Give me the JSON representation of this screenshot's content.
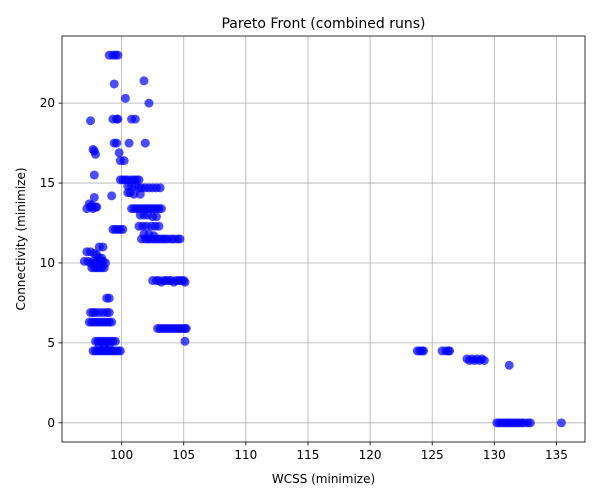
{
  "chart_data": {
    "type": "scatter",
    "title": "Pareto Front (combined runs)",
    "xlabel": "WCSS (minimize)",
    "ylabel": "Connectivity (minimize)",
    "xlim": [
      95.2,
      137.3
    ],
    "ylim": [
      -1.2,
      24.2
    ],
    "x_ticks": [
      100,
      105,
      110,
      115,
      120,
      125,
      130,
      135
    ],
    "y_ticks": [
      0,
      5,
      10,
      15,
      20
    ],
    "grid": true,
    "marker_color": "#0000ff",
    "marker_opacity": 0.7,
    "series": [
      {
        "points": [
          [
            97.2,
            13.4
          ],
          [
            97.4,
            13.7
          ],
          [
            97.5,
            13.5
          ],
          [
            97.6,
            13.6
          ],
          [
            97.7,
            13.4
          ],
          [
            97.9,
            13.5
          ],
          [
            98.0,
            13.5
          ],
          [
            97.8,
            14.1
          ],
          [
            97.5,
            18.9
          ],
          [
            97.7,
            17.1
          ],
          [
            97.8,
            17.0
          ],
          [
            97.9,
            16.8
          ],
          [
            97.8,
            15.5
          ],
          [
            99.0,
            23.0
          ],
          [
            99.3,
            23.0
          ],
          [
            99.5,
            23.0
          ],
          [
            99.7,
            23.0
          ],
          [
            99.4,
            21.2
          ],
          [
            99.3,
            19.0
          ],
          [
            99.6,
            19.0
          ],
          [
            99.7,
            19.0
          ],
          [
            99.4,
            17.5
          ],
          [
            99.6,
            17.5
          ],
          [
            99.8,
            16.9
          ],
          [
            99.9,
            16.4
          ],
          [
            100.2,
            16.4
          ],
          [
            100.3,
            20.3
          ],
          [
            100.6,
            17.5
          ],
          [
            99.2,
            14.2
          ],
          [
            99.9,
            15.2
          ],
          [
            100.1,
            15.2
          ],
          [
            100.3,
            15.2
          ],
          [
            100.5,
            15.2
          ],
          [
            100.8,
            15.2
          ],
          [
            101.0,
            15.2
          ],
          [
            101.2,
            15.2
          ],
          [
            101.4,
            15.2
          ],
          [
            100.5,
            14.8
          ],
          [
            100.8,
            14.8
          ],
          [
            101.1,
            14.8
          ],
          [
            101.4,
            14.7
          ],
          [
            101.6,
            14.7
          ],
          [
            101.9,
            14.7
          ],
          [
            102.2,
            14.7
          ],
          [
            102.5,
            14.7
          ],
          [
            102.8,
            14.7
          ],
          [
            103.1,
            14.7
          ],
          [
            100.5,
            14.4
          ],
          [
            100.7,
            14.4
          ],
          [
            101.0,
            14.3
          ],
          [
            101.5,
            14.3
          ],
          [
            100.8,
            19.0
          ],
          [
            101.1,
            19.0
          ],
          [
            101.8,
            21.4
          ],
          [
            102.2,
            20.0
          ],
          [
            101.9,
            17.5
          ],
          [
            99.3,
            12.1
          ],
          [
            99.5,
            12.1
          ],
          [
            99.7,
            12.1
          ],
          [
            99.9,
            12.1
          ],
          [
            100.1,
            12.1
          ],
          [
            100.8,
            13.4
          ],
          [
            101.0,
            13.4
          ],
          [
            101.2,
            13.4
          ],
          [
            101.4,
            13.4
          ],
          [
            101.6,
            13.4
          ],
          [
            101.8,
            13.4
          ],
          [
            102.0,
            13.4
          ],
          [
            102.2,
            13.4
          ],
          [
            102.4,
            13.4
          ],
          [
            102.6,
            13.4
          ],
          [
            102.8,
            13.4
          ],
          [
            103.0,
            13.4
          ],
          [
            103.2,
            13.4
          ],
          [
            101.5,
            13.0
          ],
          [
            101.8,
            13.0
          ],
          [
            102.1,
            13.0
          ],
          [
            102.5,
            12.9
          ],
          [
            102.8,
            12.9
          ],
          [
            101.4,
            12.3
          ],
          [
            101.7,
            12.3
          ],
          [
            102.0,
            12.3
          ],
          [
            102.4,
            12.3
          ],
          [
            102.7,
            12.3
          ],
          [
            103.0,
            12.3
          ],
          [
            101.6,
            11.5
          ],
          [
            101.9,
            11.5
          ],
          [
            102.1,
            11.5
          ],
          [
            102.3,
            11.5
          ],
          [
            102.5,
            11.5
          ],
          [
            102.7,
            11.5
          ],
          [
            102.9,
            11.5
          ],
          [
            103.1,
            11.5
          ],
          [
            103.3,
            11.5
          ],
          [
            103.5,
            11.5
          ],
          [
            103.7,
            11.5
          ],
          [
            104.0,
            11.5
          ],
          [
            104.2,
            11.5
          ],
          [
            104.5,
            11.5
          ],
          [
            104.7,
            11.5
          ],
          [
            101.8,
            11.8
          ],
          [
            102.2,
            11.8
          ],
          [
            102.6,
            11.7
          ],
          [
            102.5,
            8.9
          ],
          [
            102.8,
            8.9
          ],
          [
            103.0,
            8.9
          ],
          [
            103.2,
            8.8
          ],
          [
            103.4,
            8.9
          ],
          [
            103.6,
            8.9
          ],
          [
            103.8,
            8.9
          ],
          [
            104.0,
            8.9
          ],
          [
            104.2,
            8.8
          ],
          [
            104.4,
            8.9
          ],
          [
            104.6,
            8.9
          ],
          [
            104.8,
            8.9
          ],
          [
            105.0,
            8.9
          ],
          [
            105.1,
            8.8
          ],
          [
            102.9,
            5.9
          ],
          [
            103.1,
            5.9
          ],
          [
            103.3,
            5.9
          ],
          [
            103.5,
            5.9
          ],
          [
            103.7,
            5.9
          ],
          [
            103.9,
            5.9
          ],
          [
            104.1,
            5.9
          ],
          [
            104.3,
            5.9
          ],
          [
            104.5,
            5.9
          ],
          [
            104.7,
            5.9
          ],
          [
            104.9,
            5.9
          ],
          [
            105.1,
            5.9
          ],
          [
            105.2,
            5.9
          ],
          [
            105.1,
            5.1
          ],
          [
            97.0,
            10.1
          ],
          [
            97.3,
            10.1
          ],
          [
            97.5,
            10.0
          ],
          [
            97.7,
            10.1
          ],
          [
            97.9,
            10.0
          ],
          [
            98.1,
            10.1
          ],
          [
            98.3,
            10.0
          ],
          [
            98.5,
            10.1
          ],
          [
            98.7,
            10.0
          ],
          [
            97.2,
            10.7
          ],
          [
            97.5,
            10.7
          ],
          [
            97.8,
            10.6
          ],
          [
            98.0,
            10.5
          ],
          [
            98.2,
            11.0
          ],
          [
            98.5,
            11.0
          ],
          [
            98.2,
            10.3
          ],
          [
            98.4,
            10.3
          ],
          [
            97.6,
            9.7
          ],
          [
            97.8,
            9.7
          ],
          [
            98.0,
            9.7
          ],
          [
            98.2,
            9.7
          ],
          [
            98.4,
            9.7
          ],
          [
            98.6,
            9.7
          ],
          [
            97.5,
            6.9
          ],
          [
            97.7,
            6.9
          ],
          [
            97.9,
            6.9
          ],
          [
            98.2,
            6.9
          ],
          [
            98.5,
            6.9
          ],
          [
            98.8,
            6.9
          ],
          [
            99.0,
            6.9
          ],
          [
            97.4,
            6.3
          ],
          [
            97.6,
            6.3
          ],
          [
            97.8,
            6.3
          ],
          [
            98.0,
            6.3
          ],
          [
            98.2,
            6.3
          ],
          [
            98.4,
            6.3
          ],
          [
            98.6,
            6.3
          ],
          [
            98.8,
            6.3
          ],
          [
            99.0,
            6.3
          ],
          [
            99.2,
            6.3
          ],
          [
            98.8,
            7.8
          ],
          [
            99.0,
            7.8
          ],
          [
            97.9,
            5.1
          ],
          [
            98.1,
            5.1
          ],
          [
            98.3,
            5.1
          ],
          [
            98.5,
            5.1
          ],
          [
            98.7,
            5.1
          ],
          [
            98.9,
            5.1
          ],
          [
            99.1,
            5.1
          ],
          [
            99.3,
            5.1
          ],
          [
            99.5,
            5.1
          ],
          [
            98.2,
            4.8
          ],
          [
            98.6,
            4.8
          ],
          [
            99.0,
            4.8
          ],
          [
            97.7,
            4.5
          ],
          [
            97.9,
            4.5
          ],
          [
            98.1,
            4.5
          ],
          [
            98.3,
            4.5
          ],
          [
            98.5,
            4.5
          ],
          [
            98.7,
            4.5
          ],
          [
            98.9,
            4.5
          ],
          [
            99.1,
            4.5
          ],
          [
            99.3,
            4.5
          ],
          [
            99.5,
            4.5
          ],
          [
            99.7,
            4.5
          ],
          [
            99.9,
            4.5
          ],
          [
            123.8,
            4.5
          ],
          [
            124.0,
            4.5
          ],
          [
            124.2,
            4.5
          ],
          [
            124.3,
            4.5
          ],
          [
            125.8,
            4.5
          ],
          [
            126.1,
            4.5
          ],
          [
            126.3,
            4.5
          ],
          [
            126.4,
            4.5
          ],
          [
            127.8,
            4.0
          ],
          [
            128.0,
            3.9
          ],
          [
            128.2,
            4.0
          ],
          [
            128.4,
            3.9
          ],
          [
            128.6,
            4.0
          ],
          [
            128.8,
            3.9
          ],
          [
            129.0,
            4.0
          ],
          [
            129.2,
            3.9
          ],
          [
            131.2,
            3.6
          ],
          [
            130.2,
            0.0
          ],
          [
            130.4,
            0.0
          ],
          [
            130.6,
            0.0
          ],
          [
            130.8,
            0.0
          ],
          [
            131.0,
            0.0
          ],
          [
            131.2,
            0.0
          ],
          [
            131.4,
            0.0
          ],
          [
            131.6,
            0.0
          ],
          [
            131.8,
            0.0
          ],
          [
            132.0,
            0.0
          ],
          [
            132.2,
            0.0
          ],
          [
            132.4,
            0.0
          ],
          [
            132.7,
            0.0
          ],
          [
            132.9,
            0.0
          ],
          [
            135.4,
            0.0
          ]
        ]
      }
    ]
  }
}
